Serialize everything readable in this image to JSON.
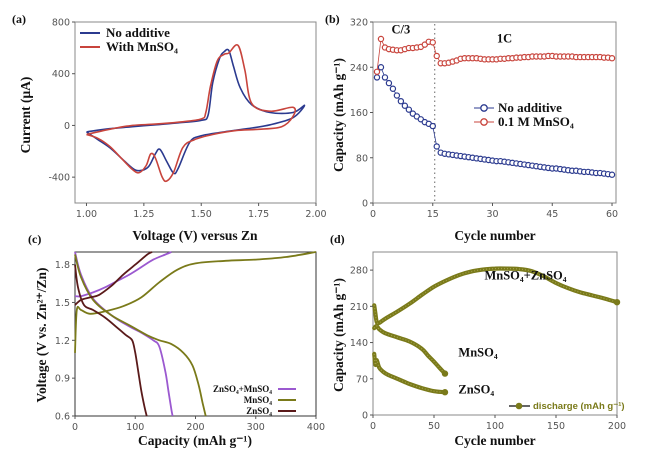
{
  "chart_data": [
    {
      "panel": "(a)",
      "type": "line",
      "xlabel": "Voltage (V) versus Zn",
      "ylabel": "Current (μA)",
      "xlim": [
        0.95,
        2.0
      ],
      "ylim": [
        -600,
        800
      ],
      "xticks": [
        "1.00",
        "1.25",
        "1.50",
        "1.75",
        "2.00"
      ],
      "xtick_values": [
        1.0,
        1.25,
        1.5,
        1.75,
        2.0
      ],
      "yticks": [
        "800",
        "400",
        "0",
        "-400"
      ],
      "ytick_values": [
        800,
        400,
        0,
        -400
      ],
      "legend_position": "top-left",
      "series": [
        {
          "name": "No additive",
          "color": "#2b3a8f",
          "x": [
            1.0,
            1.05,
            1.1,
            1.15,
            1.2,
            1.23,
            1.27,
            1.3,
            1.32,
            1.35,
            1.38,
            1.4,
            1.45,
            1.5,
            1.6,
            1.7,
            1.8,
            1.9,
            1.95,
            1.9,
            1.8,
            1.72,
            1.67,
            1.64,
            1.62,
            1.6,
            1.58,
            1.55,
            1.53,
            1.5,
            1.4,
            1.3,
            1.2,
            1.1,
            1.0
          ],
          "y": [
            -50,
            -110,
            -170,
            -250,
            -330,
            -350,
            -320,
            -220,
            -185,
            -280,
            -370,
            -330,
            -130,
            -80,
            -50,
            -25,
            5,
            60,
            155,
            100,
            100,
            160,
            290,
            460,
            580,
            570,
            520,
            330,
            80,
            40,
            20,
            5,
            -10,
            -25,
            -50
          ]
        },
        {
          "name": "With MnSO₄",
          "color": "#c8443c",
          "x": [
            1.0,
            1.05,
            1.1,
            1.15,
            1.2,
            1.23,
            1.26,
            1.28,
            1.3,
            1.33,
            1.35,
            1.38,
            1.42,
            1.47,
            1.55,
            1.65,
            1.75,
            1.85,
            1.9,
            1.9,
            1.8,
            1.72,
            1.69,
            1.66,
            1.62,
            1.6,
            1.57,
            1.54,
            1.52,
            1.5,
            1.4,
            1.3,
            1.2,
            1.1,
            1.0
          ],
          "y": [
            -70,
            -100,
            -160,
            -250,
            -340,
            -365,
            -310,
            -220,
            -250,
            -400,
            -430,
            -360,
            -170,
            -110,
            -70,
            -40,
            -30,
            -10,
            70,
            140,
            110,
            170,
            430,
            620,
            560,
            550,
            500,
            300,
            100,
            50,
            25,
            10,
            0,
            -30,
            -70
          ]
        }
      ]
    },
    {
      "panel": "(b)",
      "type": "line",
      "xlabel": "Cycle number",
      "ylabel": "Capacity (mAh g⁻¹)",
      "xlim": [
        0,
        61
      ],
      "ylim": [
        0,
        320
      ],
      "xticks": [
        "0",
        "15",
        "30",
        "45",
        "60"
      ],
      "xtick_values": [
        0,
        15,
        30,
        45,
        60
      ],
      "yticks": [
        "0",
        "80",
        "160",
        "240",
        "320"
      ],
      "ytick_values": [
        0,
        80,
        160,
        240,
        320
      ],
      "annotations": [
        {
          "text": "C/3",
          "x": 7,
          "y": 300
        },
        {
          "text": "1C",
          "x": 33,
          "y": 284
        }
      ],
      "rate_switch_cycle": 15.5,
      "legend_position": "center-right",
      "series": [
        {
          "name": "No additive",
          "color": "#2b3a8f",
          "x": [
            1,
            2,
            3,
            4,
            5,
            6,
            7,
            8,
            9,
            10,
            11,
            12,
            13,
            14,
            15,
            16,
            17,
            18,
            19,
            20,
            21,
            22,
            23,
            24,
            25,
            26,
            27,
            28,
            29,
            30,
            31,
            32,
            33,
            34,
            35,
            36,
            37,
            38,
            39,
            40,
            41,
            42,
            43,
            44,
            45,
            46,
            47,
            48,
            49,
            50,
            51,
            52,
            53,
            54,
            55,
            56,
            57,
            58,
            59,
            60
          ],
          "y": [
            222,
            240,
            222,
            212,
            202,
            190,
            180,
            172,
            165,
            158,
            153,
            148,
            143,
            140,
            136,
            100,
            89,
            87,
            86,
            85,
            84,
            83,
            82,
            81,
            80,
            79,
            78,
            77,
            76,
            75,
            74,
            74,
            73,
            72,
            71,
            70,
            69,
            68,
            67,
            66,
            65,
            64,
            63,
            62,
            61,
            61,
            60,
            59,
            58,
            57,
            57,
            56,
            55,
            55,
            54,
            53,
            53,
            52,
            51,
            50
          ]
        },
        {
          "name": "0.1 M MnSO₄",
          "color": "#c8443c",
          "x": [
            1,
            2,
            3,
            4,
            5,
            6,
            7,
            8,
            9,
            10,
            11,
            12,
            13,
            14,
            15,
            16,
            17,
            18,
            19,
            20,
            21,
            22,
            23,
            24,
            25,
            26,
            27,
            28,
            29,
            30,
            31,
            32,
            33,
            34,
            35,
            36,
            37,
            38,
            39,
            40,
            41,
            42,
            43,
            44,
            45,
            46,
            47,
            48,
            49,
            50,
            51,
            52,
            53,
            54,
            55,
            56,
            57,
            58,
            59,
            60
          ],
          "y": [
            232,
            290,
            275,
            272,
            271,
            270,
            270,
            272,
            274,
            274,
            275,
            276,
            280,
            285,
            284,
            260,
            247,
            247,
            248,
            250,
            252,
            255,
            256,
            256,
            256,
            256,
            255,
            254,
            254,
            254,
            254,
            255,
            255,
            256,
            256,
            257,
            257,
            258,
            258,
            259,
            259,
            259,
            259,
            260,
            260,
            259,
            259,
            259,
            259,
            259,
            258,
            258,
            258,
            258,
            258,
            258,
            258,
            257,
            257,
            256
          ]
        }
      ]
    },
    {
      "panel": "(c)",
      "type": "line",
      "xlabel": "Capacity (mAh g⁻¹)",
      "ylabel": "Voltage (V vs. Zn²⁺/Zn)",
      "xlim": [
        0,
        400
      ],
      "ylim": [
        0.6,
        1.9
      ],
      "xticks": [
        "0",
        "100",
        "200",
        "300",
        "400"
      ],
      "xtick_values": [
        0,
        100,
        200,
        300,
        400
      ],
      "yticks": [
        "0.6",
        "0.9",
        "1.2",
        "1.5",
        "1.8"
      ],
      "ytick_values": [
        0.6,
        0.9,
        1.2,
        1.5,
        1.8
      ],
      "legend_position": "bottom-right",
      "series": [
        {
          "name": "ZnSO₄+MnSO₄",
          "color": "#9b59d0",
          "curves": [
            {
              "x": [
                0,
                10,
                30,
                60,
                90,
                110,
                130,
                140,
                150,
                155,
                160,
                162
              ],
              "y": [
                1.9,
                1.72,
                1.53,
                1.4,
                1.31,
                1.26,
                1.2,
                1.15,
                0.95,
                0.8,
                0.65,
                0.6
              ]
            },
            {
              "x": [
                0,
                10,
                30,
                50,
                70,
                90,
                110,
                130,
                150,
                160
              ],
              "y": [
                1.55,
                1.55,
                1.58,
                1.62,
                1.67,
                1.72,
                1.78,
                1.84,
                1.88,
                1.9
              ]
            }
          ]
        },
        {
          "name": "MnSO₄",
          "color": "#7a7a1a",
          "curves": [
            {
              "x": [
                0,
                10,
                30,
                60,
                90,
                120,
                140,
                160,
                180,
                195,
                205,
                212,
                217
              ],
              "y": [
                1.88,
                1.7,
                1.52,
                1.4,
                1.32,
                1.24,
                1.2,
                1.17,
                1.1,
                1.0,
                0.85,
                0.7,
                0.6
              ]
            },
            {
              "x": [
                0,
                3,
                10,
                25,
                50,
                80,
                110,
                140,
                170,
                200,
                250,
                300,
                350,
                400
              ],
              "y": [
                1.1,
                1.44,
                1.44,
                1.41,
                1.43,
                1.47,
                1.54,
                1.66,
                1.76,
                1.81,
                1.83,
                1.84,
                1.86,
                1.9
              ]
            }
          ]
        },
        {
          "name": "ZnSO₄",
          "color": "#5a1a1a",
          "curves": [
            {
              "x": [
                0,
                5,
                15,
                30,
                50,
                70,
                85,
                95,
                100,
                105,
                110,
                115,
                119
              ],
              "y": [
                1.8,
                1.62,
                1.48,
                1.44,
                1.38,
                1.3,
                1.24,
                1.2,
                1.1,
                0.95,
                0.8,
                0.68,
                0.6
              ]
            },
            {
              "x": [
                0,
                10,
                25,
                40,
                60,
                80,
                100,
                120,
                128
              ],
              "y": [
                1.48,
                1.52,
                1.54,
                1.56,
                1.63,
                1.72,
                1.8,
                1.88,
                1.9
              ]
            }
          ]
        }
      ]
    },
    {
      "panel": "(d)",
      "type": "line",
      "xlabel": "Cycle number",
      "ylabel": "Capacity (mAh g⁻¹)",
      "xlim": [
        0,
        200
      ],
      "ylim": [
        0,
        315
      ],
      "xticks": [
        "0",
        "50",
        "100",
        "150",
        "200"
      ],
      "xtick_values": [
        0,
        50,
        100,
        150,
        200
      ],
      "yticks": [
        "0",
        "70",
        "140",
        "210",
        "280"
      ],
      "ytick_values": [
        0,
        70,
        140,
        210,
        280
      ],
      "legend": "discharge (mAh g⁻¹)",
      "legend_position": "bottom-right",
      "annotations": [
        {
          "text": "MnSO₄+ZnSO₄",
          "x": 125,
          "y": 262
        },
        {
          "text": "MnSO₄",
          "x": 70,
          "y": 113
        },
        {
          "text": "ZnSO₄",
          "x": 70,
          "y": 42
        }
      ],
      "series": [
        {
          "name": "MnSO₄+ZnSO₄",
          "color": "#7a7a1a",
          "x": [
            1,
            2,
            3,
            5,
            10,
            20,
            30,
            40,
            50,
            60,
            70,
            80,
            90,
            100,
            110,
            120,
            130,
            140,
            150,
            160,
            170,
            180,
            190,
            200
          ],
          "y": [
            212,
            196,
            180,
            178,
            186,
            200,
            215,
            232,
            248,
            260,
            270,
            277,
            281,
            283,
            283,
            282,
            278,
            268,
            255,
            245,
            237,
            231,
            225,
            218
          ]
        },
        {
          "name": "MnSO₄",
          "color": "#7a7a1a",
          "x": [
            1,
            3,
            5,
            10,
            20,
            30,
            40,
            45,
            50,
            55,
            59
          ],
          "y": [
            168,
            172,
            166,
            158,
            150,
            142,
            128,
            115,
            103,
            90,
            80
          ]
        },
        {
          "name": "ZnSO₄",
          "color": "#7a7a1a",
          "x": [
            1,
            2,
            3,
            5,
            8,
            12,
            20,
            30,
            40,
            50,
            59
          ],
          "y": [
            118,
            97,
            106,
            92,
            84,
            78,
            70,
            60,
            52,
            46,
            44
          ]
        }
      ]
    }
  ]
}
